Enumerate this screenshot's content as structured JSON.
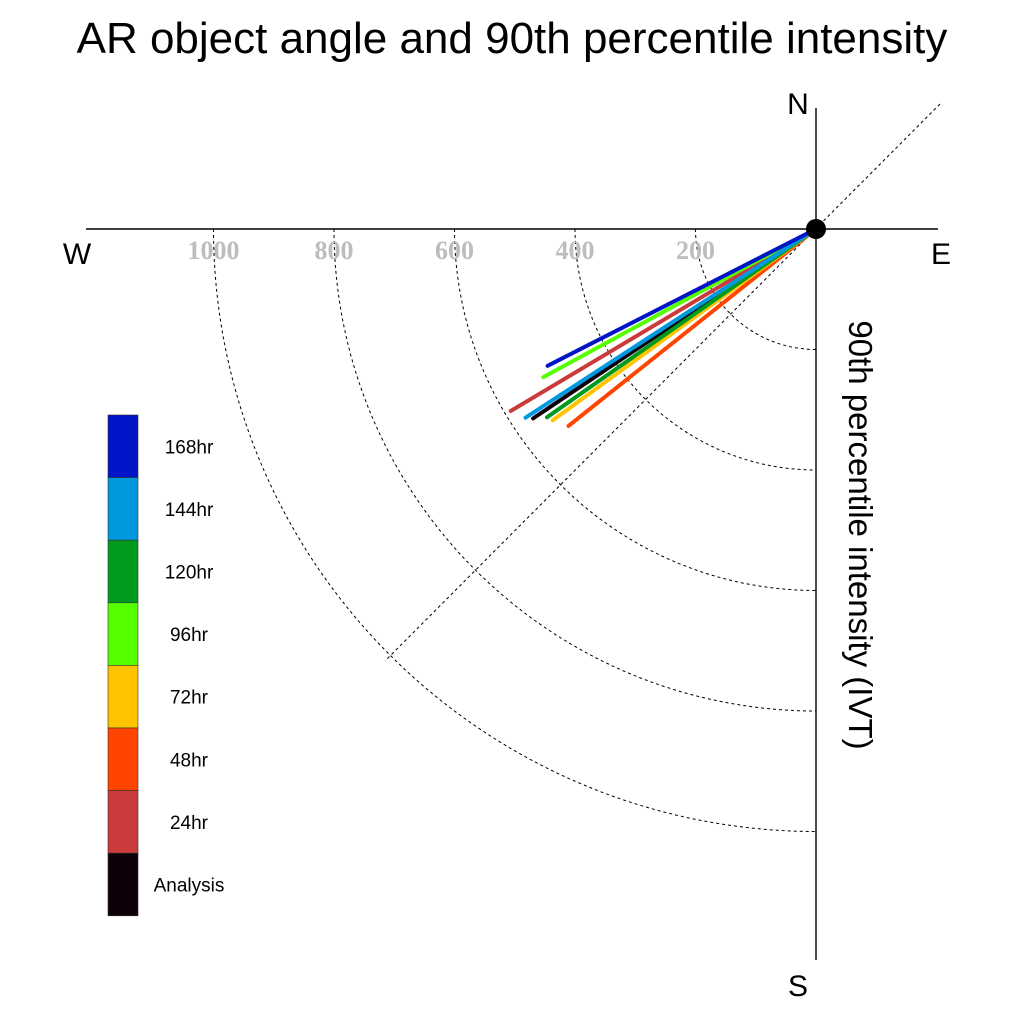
{
  "page": {
    "title": "AR object angle and 90th percentile intensity"
  },
  "chart_data": {
    "type": "polar-line",
    "title": "AR object angle and 90th percentile intensity",
    "radial_label": "90th percentile intensity (IVT)",
    "compass": {
      "north": "N",
      "south": "S",
      "east": "E",
      "west": "W"
    },
    "radial_ticks": [
      200,
      400,
      600,
      800,
      1000
    ],
    "radial_tick_labels": [
      "200",
      "400",
      "600",
      "800",
      "1000"
    ],
    "rlim": [
      0,
      1200
    ],
    "grid": true,
    "legend_position": "left",
    "series": [
      {
        "name": "Analysis",
        "color": "#0d0008",
        "magnitude": 565,
        "angle_deg": 236.2
      },
      {
        "name": "24hr",
        "color": "#cc3b3b",
        "magnitude": 590,
        "angle_deg": 239.2
      },
      {
        "name": "48hr",
        "color": "#ff4500",
        "magnitude": 525,
        "angle_deg": 231.5
      },
      {
        "name": "72hr",
        "color": "#ffc300",
        "magnitude": 540,
        "angle_deg": 234.0
      },
      {
        "name": "96hr",
        "color": "#55ff00",
        "magnitude": 515,
        "angle_deg": 241.5
      },
      {
        "name": "120hr",
        "color": "#009a1e",
        "magnitude": 545,
        "angle_deg": 235.0
      },
      {
        "name": "144hr",
        "color": "#0099dd",
        "magnitude": 575,
        "angle_deg": 237.0
      },
      {
        "name": "168hr",
        "color": "#0014c8",
        "magnitude": 500,
        "angle_deg": 243.0
      }
    ]
  }
}
